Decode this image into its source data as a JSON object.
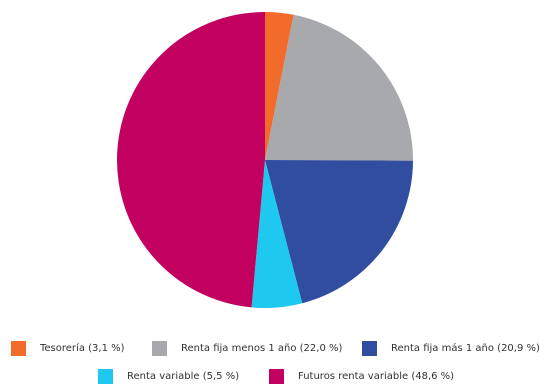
{
  "chart_data": {
    "type": "pie",
    "title": "",
    "slices": [
      {
        "label": "Tesorería (3,1 %)",
        "value": 3.1,
        "color": "#f26b2b"
      },
      {
        "label": "Renta fija menos 1 año (22,0 %)",
        "value": 22.0,
        "color": "#a7a9ac"
      },
      {
        "label": "Renta fija más 1 año (20,9 %)",
        "value": 20.9,
        "color": "#304d9f"
      },
      {
        "label": "Renta variable (5,5 %)",
        "value": 5.5,
        "color": "#1ec8ef"
      },
      {
        "label": "Futuros renta variable (48,6 %)",
        "value": 48.6,
        "color": "#c2005f"
      }
    ],
    "legend_position": "bottom"
  }
}
